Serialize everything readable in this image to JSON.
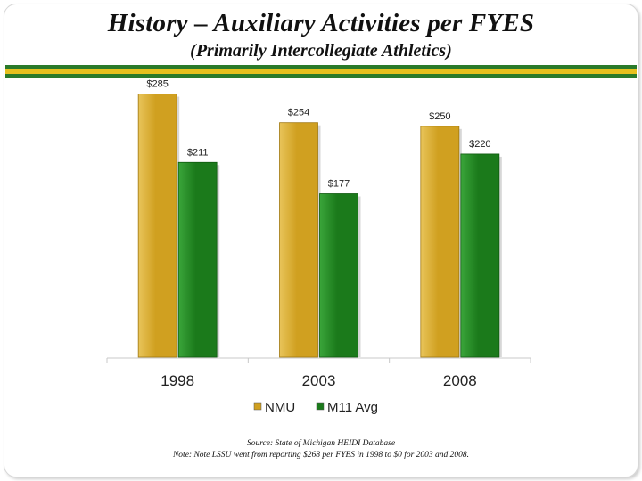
{
  "slide": {
    "title": "History – Auxiliary Activities per FYES",
    "subtitle": "(Primarily Intercollegiate Athletics)",
    "source": "Source: State of Michigan HEIDI Database",
    "note": "Note: Note LSSU went from reporting $268 per FYES in 1998 to $0 for 2003 and 2008."
  },
  "colors": {
    "stripe_green": "#2a7a2a",
    "stripe_gold": "#e6c01e",
    "nmu": "#d0a020",
    "nmu_light": "#e8c45a",
    "m11": "#1b7a1b",
    "m11_light": "#3aa53a"
  },
  "chart_data": {
    "type": "bar",
    "title": "",
    "xlabel": "",
    "ylabel": "",
    "ylim": [
      0,
      300
    ],
    "categories": [
      "1998",
      "2003",
      "2008"
    ],
    "series": [
      {
        "name": "NMU",
        "values": [
          285,
          254,
          250
        ],
        "labels": [
          "$285",
          "$254",
          "$250"
        ],
        "color": "#d0a020"
      },
      {
        "name": "M11 Avg",
        "values": [
          211,
          177,
          220
        ],
        "labels": [
          "$211",
          "$177",
          "$220"
        ],
        "color": "#1b7a1b"
      }
    ],
    "legend": "bottom",
    "grid": false
  }
}
